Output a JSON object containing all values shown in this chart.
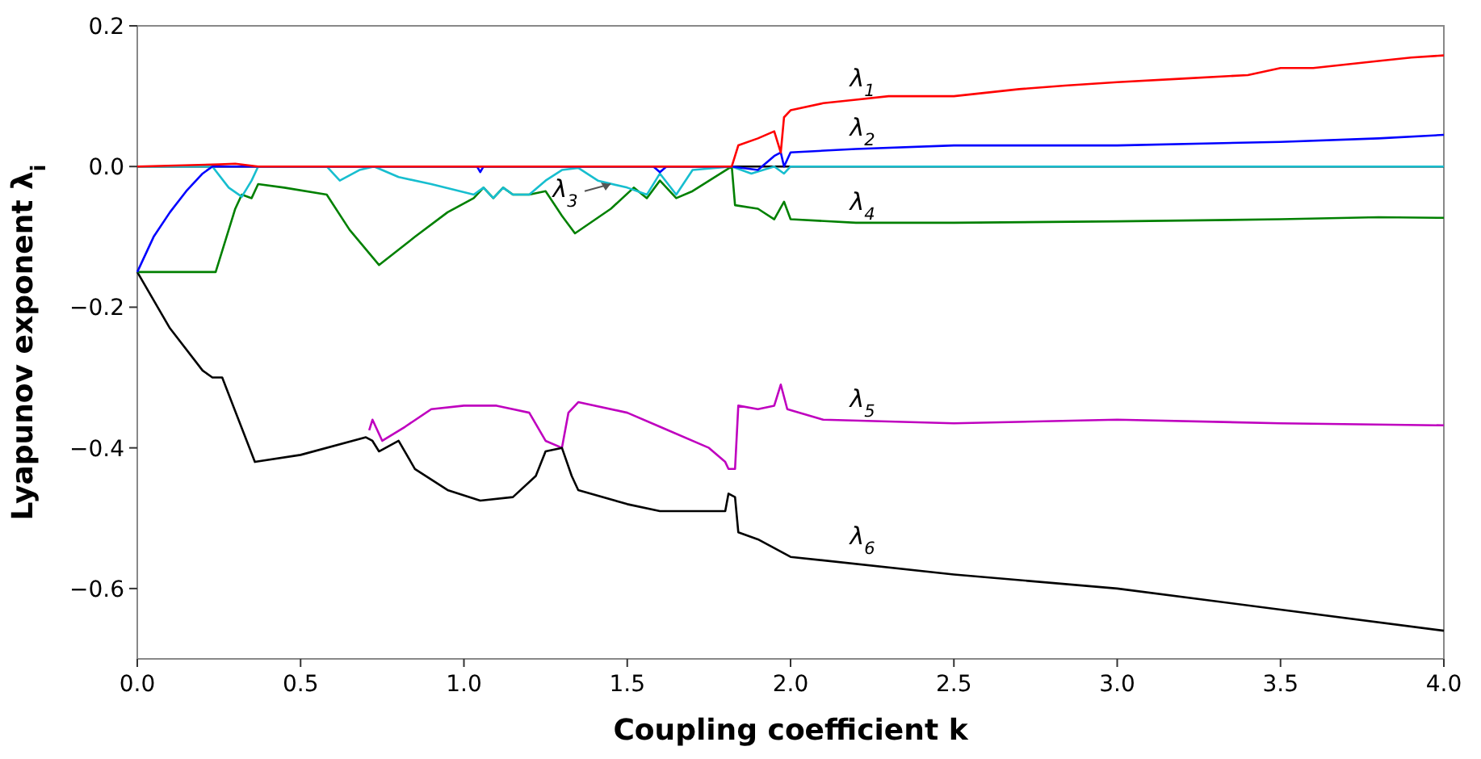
{
  "chart_data": {
    "type": "line",
    "xlabel": "Coupling coefficient k",
    "ylabel": "Lyapunov exponent λ$_{i}$",
    "xlim": [
      0,
      4
    ],
    "ylim": [
      -0.7,
      0.2
    ],
    "xticks": [
      {
        "value": 0,
        "label": "0.0"
      },
      {
        "value": 0.5,
        "label": "0.5"
      },
      {
        "value": 1,
        "label": "1.0"
      },
      {
        "value": 1.5,
        "label": "1.5"
      },
      {
        "value": 2,
        "label": "2.0"
      },
      {
        "value": 2.5,
        "label": "2.5"
      },
      {
        "value": 3,
        "label": "3.0"
      },
      {
        "value": 3.5,
        "label": "3.5"
      },
      {
        "value": 4,
        "label": "4.0"
      }
    ],
    "yticks": [
      {
        "value": 0.2,
        "label": "0.2"
      },
      {
        "value": 0,
        "label": "0.0"
      },
      {
        "value": -0.2,
        "label": "−0.2"
      },
      {
        "value": -0.4,
        "label": "−0.4"
      },
      {
        "value": -0.6,
        "label": "−0.6"
      }
    ],
    "grid": false,
    "ref_lines": [
      {
        "axis": "y",
        "value": 0,
        "color": "#000000"
      }
    ],
    "series": [
      {
        "name": "λ$_{1}$",
        "color": "#ff0000",
        "x": [
          0,
          0.25,
          0.3,
          0.37,
          1.82,
          1.84,
          1.9,
          1.95,
          1.97,
          1.98,
          2.0,
          2.1,
          2.2,
          2.3,
          2.5,
          2.7,
          2.84,
          3.0,
          3.2,
          3.4,
          3.5,
          3.6,
          3.8,
          3.9,
          4.0
        ],
        "values": [
          0,
          0.003,
          0.004,
          0,
          0,
          0.03,
          0.04,
          0.05,
          0.02,
          0.07,
          0.08,
          0.09,
          0.095,
          0.1,
          0.1,
          0.11,
          0.115,
          0.12,
          0.125,
          0.13,
          0.14,
          0.14,
          0.15,
          0.155,
          0.158
        ]
      },
      {
        "name": "λ$_{2}$",
        "color": "#0000ff",
        "x": [
          0,
          0.05,
          0.1,
          0.15,
          0.2,
          0.23,
          1.04,
          1.05,
          1.06,
          1.58,
          1.6,
          1.62,
          1.82,
          1.9,
          1.95,
          1.97,
          1.98,
          2.0,
          2.2,
          2.5,
          3.0,
          3.5,
          3.8,
          4.0
        ],
        "values": [
          -0.15,
          -0.1,
          -0.065,
          -0.035,
          -0.01,
          0,
          0,
          -0.008,
          0,
          0,
          -0.008,
          0,
          0,
          -0.005,
          0.015,
          0.02,
          0,
          0.02,
          0.025,
          0.03,
          0.03,
          0.035,
          0.04,
          0.045
        ]
      },
      {
        "name": "λ$_{3}$",
        "color": "#17becf",
        "x": [
          0,
          0.23,
          0.28,
          0.32,
          0.35,
          0.37,
          0.58,
          0.62,
          0.68,
          0.725,
          0.8,
          0.9,
          1.03,
          1.06,
          1.09,
          1.12,
          1.15,
          1.2,
          1.25,
          1.3,
          1.35,
          1.41,
          1.5,
          1.56,
          1.6,
          1.65,
          1.7,
          1.82,
          1.88,
          1.95,
          1.98,
          2.0,
          4.0
        ],
        "values": [
          0,
          0,
          -0.03,
          -0.043,
          -0.02,
          0,
          0,
          -0.02,
          -0.005,
          0,
          -0.015,
          -0.025,
          -0.04,
          -0.03,
          -0.045,
          -0.03,
          -0.04,
          -0.04,
          -0.02,
          -0.005,
          -0.002,
          -0.02,
          -0.03,
          -0.04,
          -0.01,
          -0.04,
          -0.005,
          0,
          -0.01,
          0,
          -0.01,
          0,
          0
        ]
      },
      {
        "name": "λ$_{4}$",
        "color": "#008000",
        "x": [
          0,
          0.24,
          0.3,
          0.32,
          0.35,
          0.37,
          0.45,
          0.58,
          0.65,
          0.74,
          0.85,
          0.95,
          1.03,
          1.06,
          1.09,
          1.12,
          1.15,
          1.2,
          1.25,
          1.3,
          1.34,
          1.45,
          1.52,
          1.56,
          1.6,
          1.65,
          1.7,
          1.82,
          1.83,
          1.9,
          1.95,
          1.98,
          2.0,
          2.2,
          2.5,
          3.0,
          3.5,
          3.8,
          4.0
        ],
        "values": [
          -0.15,
          -0.15,
          -0.06,
          -0.04,
          -0.045,
          -0.025,
          -0.03,
          -0.04,
          -0.09,
          -0.14,
          -0.1,
          -0.065,
          -0.045,
          -0.03,
          -0.045,
          -0.03,
          -0.04,
          -0.04,
          -0.035,
          -0.07,
          -0.095,
          -0.06,
          -0.03,
          -0.045,
          -0.02,
          -0.045,
          -0.035,
          0,
          -0.055,
          -0.06,
          -0.075,
          -0.05,
          -0.075,
          -0.08,
          -0.08,
          -0.078,
          -0.075,
          -0.072,
          -0.073
        ]
      },
      {
        "name": "λ$_{5}$",
        "color": "#bf00bf",
        "x": [
          0.71,
          0.72,
          0.75,
          0.82,
          0.9,
          1.0,
          1.1,
          1.2,
          1.25,
          1.3,
          1.32,
          1.35,
          1.5,
          1.6,
          1.75,
          1.8,
          1.81,
          1.83,
          1.84,
          1.9,
          1.95,
          1.97,
          1.99,
          2.1,
          2.5,
          3.0,
          3.5,
          4.0
        ],
        "values": [
          -0.375,
          -0.36,
          -0.39,
          -0.37,
          -0.345,
          -0.34,
          -0.34,
          -0.35,
          -0.39,
          -0.4,
          -0.35,
          -0.335,
          -0.35,
          -0.37,
          -0.4,
          -0.42,
          -0.43,
          -0.43,
          -0.34,
          -0.345,
          -0.34,
          -0.31,
          -0.345,
          -0.36,
          -0.365,
          -0.36,
          -0.365,
          -0.368
        ]
      },
      {
        "name": "λ$_{6}$",
        "color": "#000000",
        "x": [
          0,
          0.1,
          0.2,
          0.23,
          0.26,
          0.36,
          0.5,
          0.7,
          0.72,
          0.74,
          0.8,
          0.85,
          0.95,
          1.05,
          1.15,
          1.22,
          1.25,
          1.3,
          1.33,
          1.35,
          1.5,
          1.6,
          1.8,
          1.81,
          1.83,
          1.84,
          1.9,
          2.0,
          2.5,
          3.0,
          3.5,
          4.0
        ],
        "values": [
          -0.15,
          -0.23,
          -0.29,
          -0.3,
          -0.3,
          -0.42,
          -0.41,
          -0.385,
          -0.39,
          -0.405,
          -0.39,
          -0.43,
          -0.46,
          -0.475,
          -0.47,
          -0.44,
          -0.405,
          -0.4,
          -0.44,
          -0.46,
          -0.48,
          -0.49,
          -0.49,
          -0.465,
          -0.47,
          -0.52,
          -0.53,
          -0.555,
          -0.58,
          -0.6,
          -0.63,
          -0.66
        ]
      }
    ]
  }
}
